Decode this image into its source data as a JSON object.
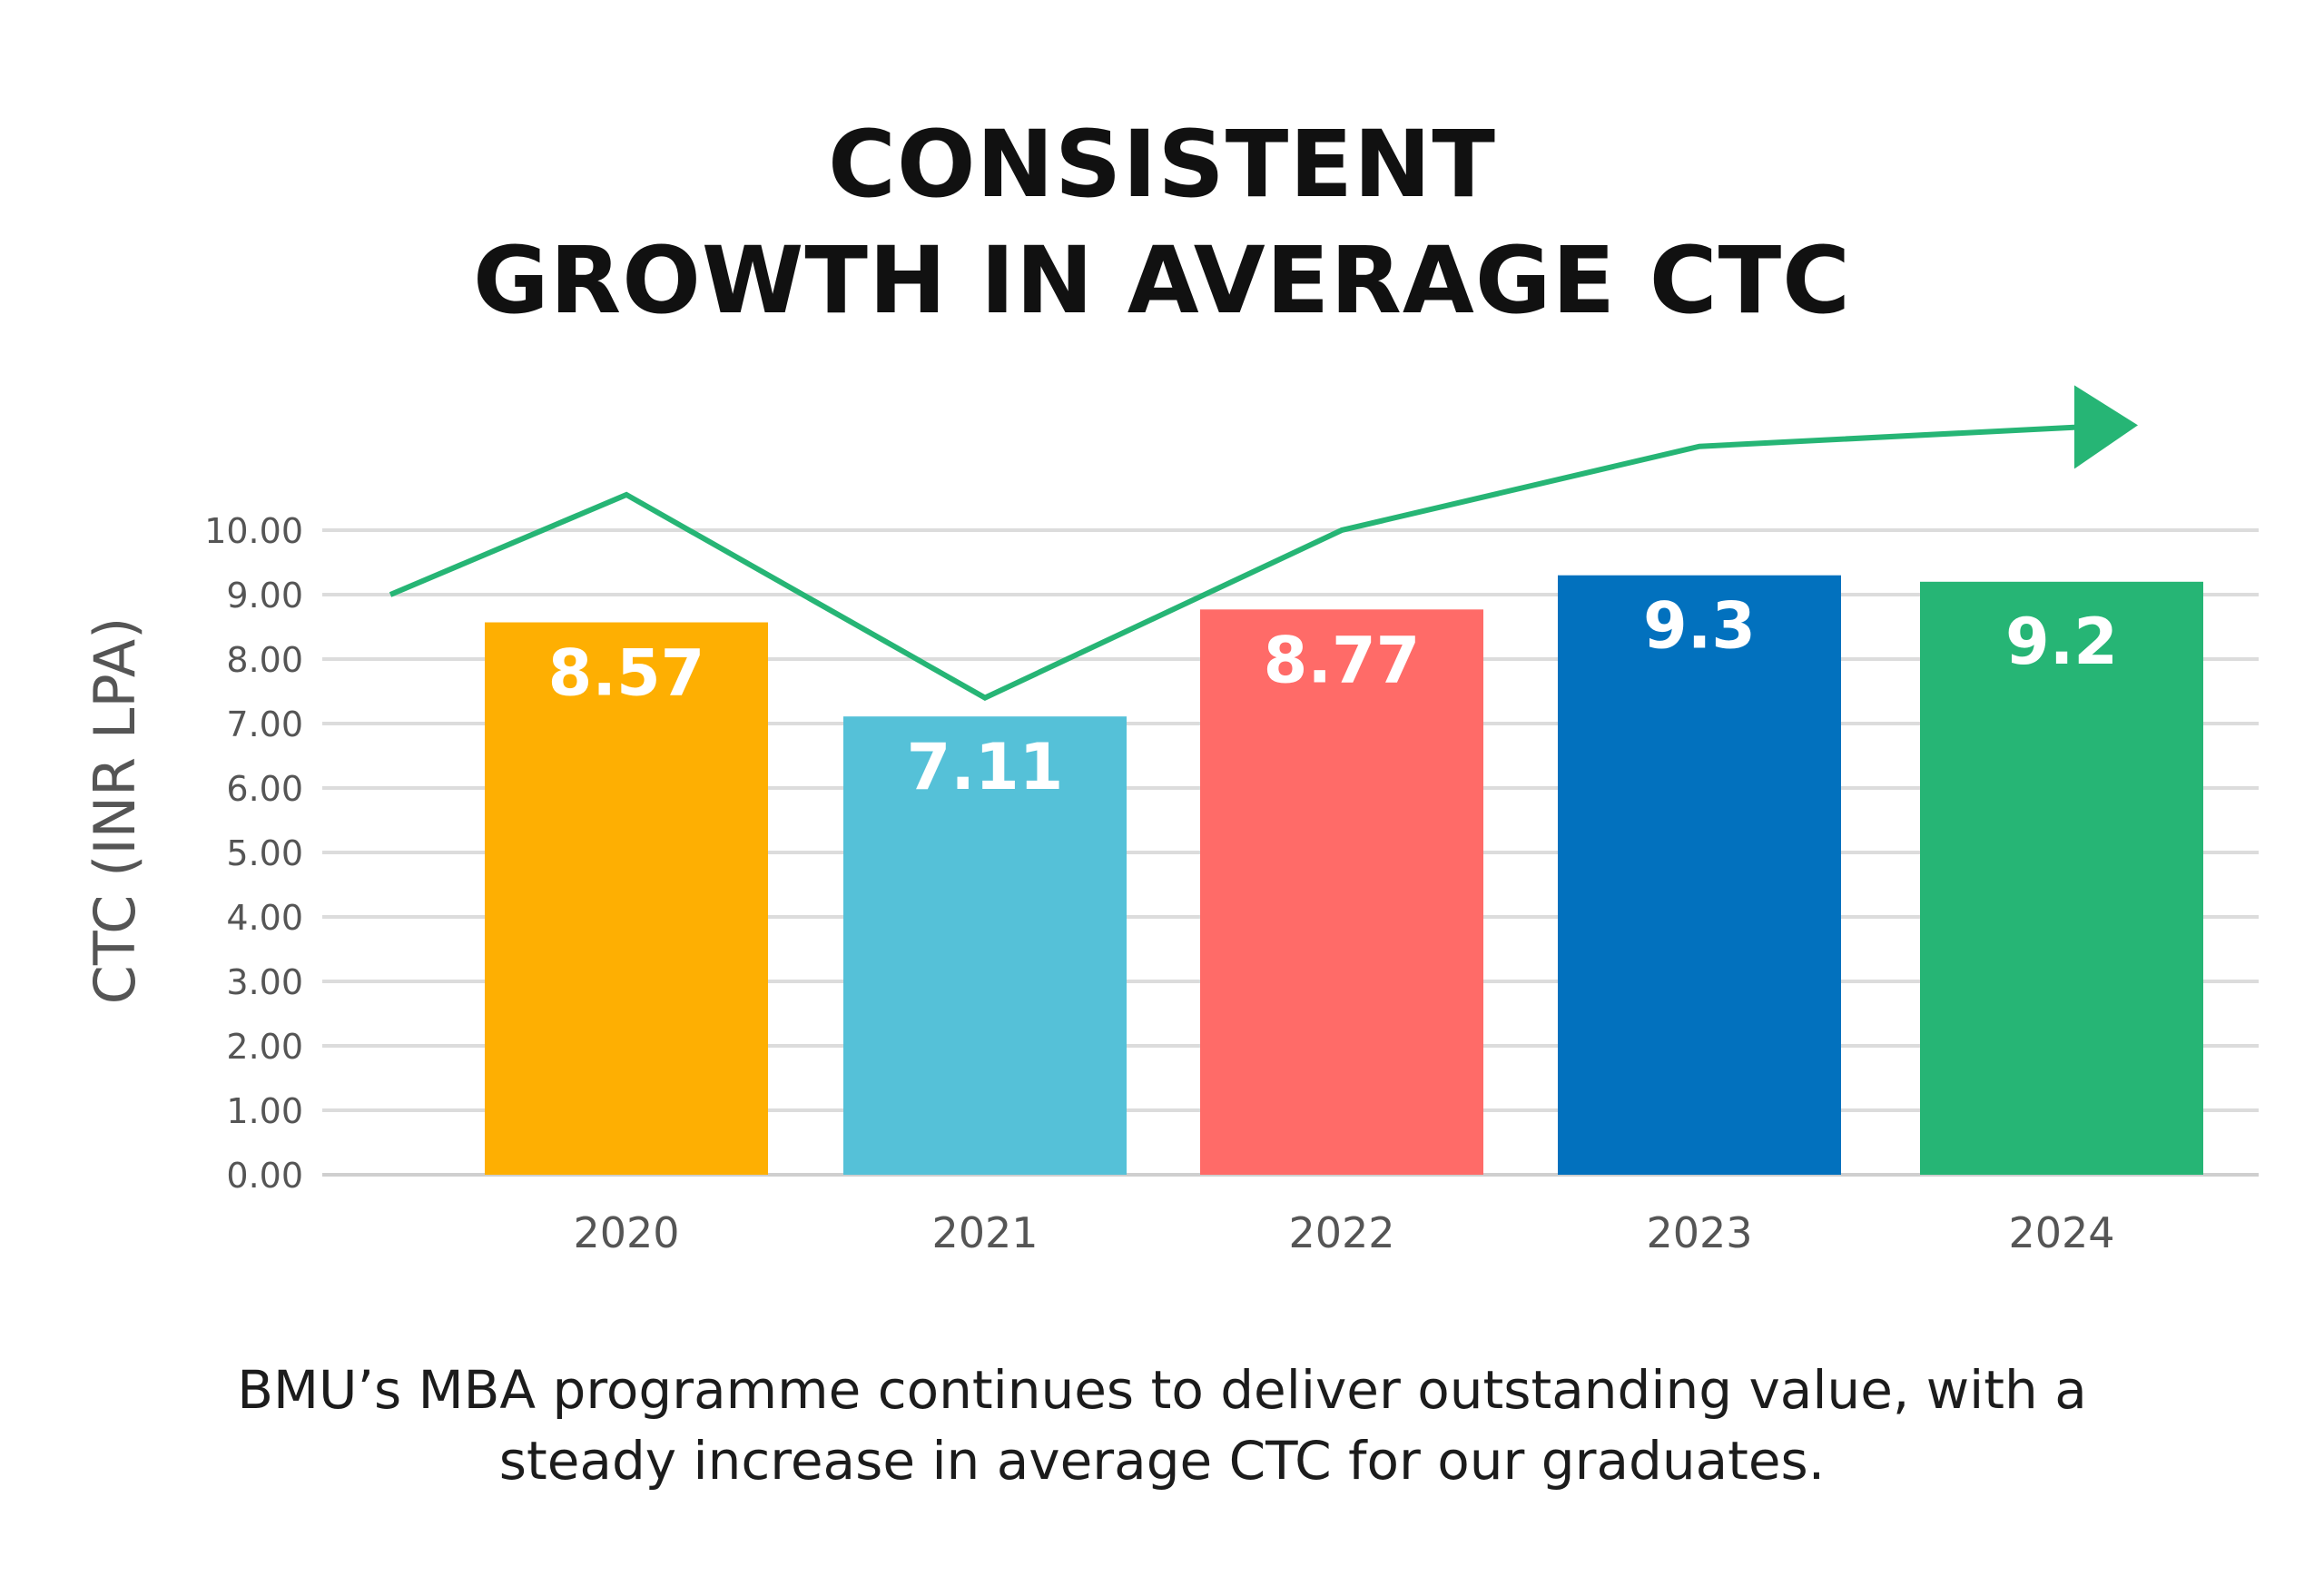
{
  "title": {
    "line1": "CONSISTENT",
    "line2": "GROWTH IN AVERAGE CTC"
  },
  "caption": {
    "line1": "BMU’s MBA programme continues to deliver outstanding value, with a",
    "line2": "steady increase in average CTC for our graduates."
  },
  "chart_data": {
    "type": "bar",
    "title": "CONSISTENT GROWTH IN AVERAGE CTC",
    "xlabel": "",
    "ylabel": "CTC (INR LPA)",
    "ylim": [
      0,
      10
    ],
    "yticks": [
      "0.00",
      "1.00",
      "2.00",
      "3.00",
      "4.00",
      "5.00",
      "6.00",
      "7.00",
      "8.00",
      "9.00",
      "10.00"
    ],
    "categories": [
      "2020",
      "2021",
      "2022",
      "2023",
      "2024"
    ],
    "values": [
      8.57,
      7.11,
      8.77,
      9.3,
      9.2
    ],
    "data_labels": [
      "8.57",
      "7.11",
      "8.77",
      "9.3",
      "9.2"
    ],
    "bar_colors": [
      "#FEAF02",
      "#55C1D8",
      "#FF6B68",
      "#0271BE",
      "#26B575"
    ],
    "grid": true,
    "trend_line": {
      "color": "#26B575",
      "has_arrow": true,
      "points": [
        {
          "x": "start",
          "y": 9.0
        },
        {
          "x": "2020",
          "y": 10.55
        },
        {
          "x": "2021",
          "y": 7.4
        },
        {
          "x": "2022",
          "y": 10.0
        },
        {
          "x": "2023",
          "y": 11.3
        },
        {
          "x": "2024",
          "y": 11.6
        }
      ]
    }
  }
}
